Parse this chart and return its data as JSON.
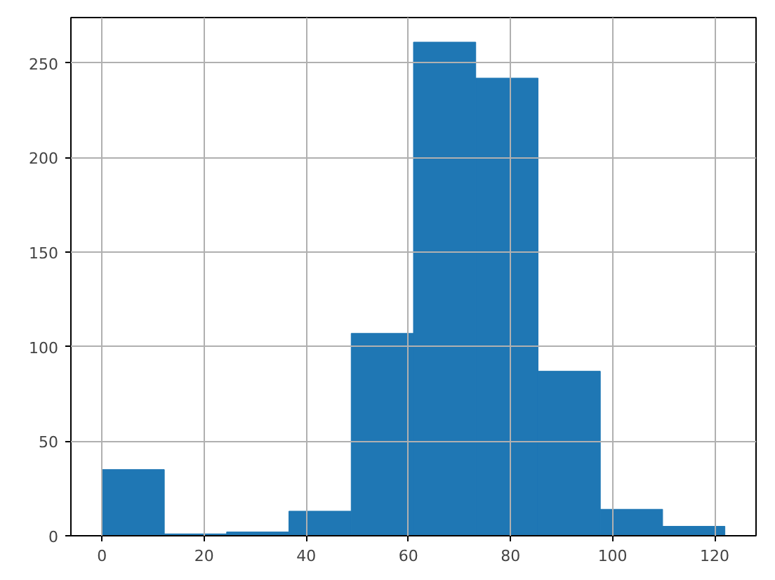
{
  "chart_data": {
    "type": "histogram",
    "bins": [
      0,
      12.2,
      24.4,
      36.6,
      48.8,
      61,
      73.2,
      85.4,
      97.6,
      109.8,
      122
    ],
    "values": [
      35,
      1,
      2,
      13,
      107,
      261,
      242,
      87,
      14,
      5
    ],
    "color": "#1f77b4",
    "xlim": [
      -6.1,
      128.1
    ],
    "ylim": [
      0,
      274
    ],
    "xticks": [
      0,
      20,
      40,
      60,
      80,
      100,
      120
    ],
    "yticks": [
      0,
      50,
      100,
      150,
      200,
      250
    ],
    "grid": true
  }
}
